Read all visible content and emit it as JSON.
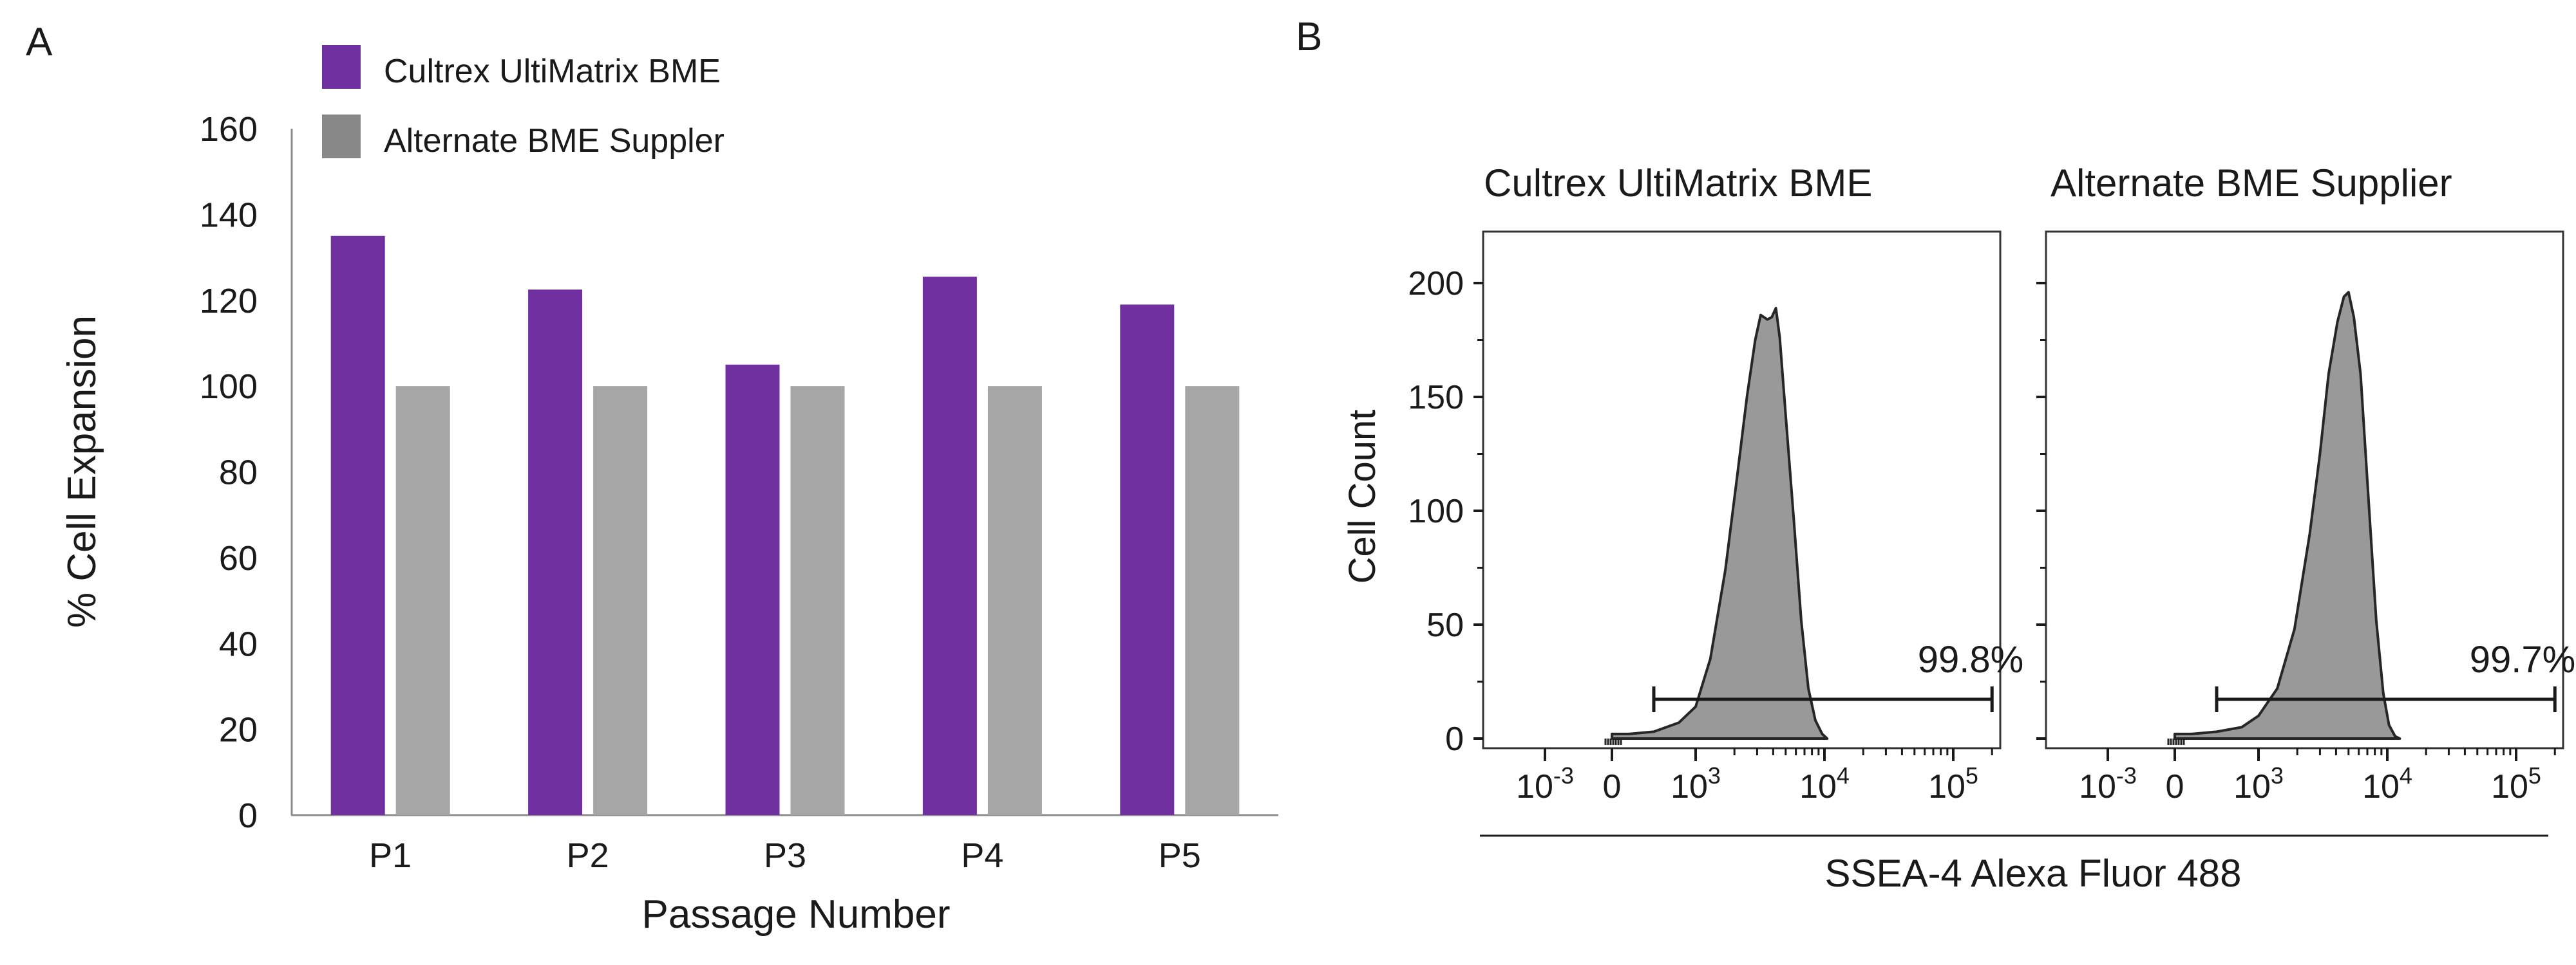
{
  "panels": {
    "a_label": "A",
    "b_label": "B"
  },
  "chart_data": [
    {
      "type": "bar",
      "title": "",
      "xlabel": "Passage Number",
      "ylabel": "% Cell Expansion",
      "categories": [
        "P1",
        "P2",
        "P3",
        "P4",
        "P5"
      ],
      "ylim": [
        0,
        160
      ],
      "yticks": [
        0,
        20,
        40,
        60,
        80,
        100,
        120,
        140,
        160
      ],
      "series": [
        {
          "name": "Cultrex UltiMatrix BME",
          "color": "#7030a0",
          "values": [
            135,
            122.5,
            105,
            125.5,
            119
          ]
        },
        {
          "name": "Alternate BME Suppler",
          "color": "#a6a6a6",
          "values": [
            100,
            100,
            100,
            100,
            100
          ]
        }
      ],
      "legend_position": "top-left",
      "legend_colors": [
        "#7030a0",
        "#888888"
      ],
      "grid": false
    },
    {
      "type": "area",
      "xlabel": "SSEA-4 Alexa Fluor 488",
      "ylabel": "Cell Count",
      "xscale": "biexponential",
      "xtick_labels": [
        "10",
        "0",
        "10",
        "10",
        "10"
      ],
      "xtick_exponents": [
        "-3",
        "",
        "3",
        "4",
        "5"
      ],
      "ylim": [
        0,
        220
      ],
      "yticks": [
        "0",
        "50",
        "100",
        "150",
        "200"
      ],
      "fill_color": "#999999",
      "panels": [
        {
          "title": "Cultrex UltiMatrix BME",
          "gate_label": "99.8%",
          "gate_range": [
            500,
            200000
          ],
          "peak_count": 189,
          "histogram": [
            [
              0,
              2
            ],
            [
              200,
              2
            ],
            [
              500,
              3
            ],
            [
              800,
              7
            ],
            [
              1000,
              14
            ],
            [
              1300,
              35
            ],
            [
              1700,
              74
            ],
            [
              2100,
              115
            ],
            [
              2500,
              150
            ],
            [
              2900,
              175
            ],
            [
              3200,
              186
            ],
            [
              3600,
              184
            ],
            [
              3900,
              185
            ],
            [
              4200,
              189
            ],
            [
              4500,
              176
            ],
            [
              5000,
              142
            ],
            [
              5800,
              95
            ],
            [
              6600,
              52
            ],
            [
              7500,
              22
            ],
            [
              8500,
              8
            ],
            [
              9600,
              2
            ],
            [
              10500,
              0
            ]
          ]
        },
        {
          "title": "Alternate BME Supplier",
          "gate_label": "99.7%",
          "gate_range": [
            500,
            200000
          ],
          "peak_count": 196,
          "histogram": [
            [
              0,
              2
            ],
            [
              200,
              2
            ],
            [
              500,
              3
            ],
            [
              800,
              5
            ],
            [
              1000,
              10
            ],
            [
              1400,
              22
            ],
            [
              1900,
              48
            ],
            [
              2500,
              90
            ],
            [
              3000,
              125
            ],
            [
              3500,
              160
            ],
            [
              4100,
              183
            ],
            [
              4600,
              194
            ],
            [
              5000,
              196
            ],
            [
              5500,
              185
            ],
            [
              6200,
              160
            ],
            [
              7200,
              102
            ],
            [
              8200,
              52
            ],
            [
              9300,
              20
            ],
            [
              10300,
              6
            ],
            [
              11500,
              1
            ],
            [
              12500,
              0
            ]
          ]
        }
      ]
    }
  ]
}
